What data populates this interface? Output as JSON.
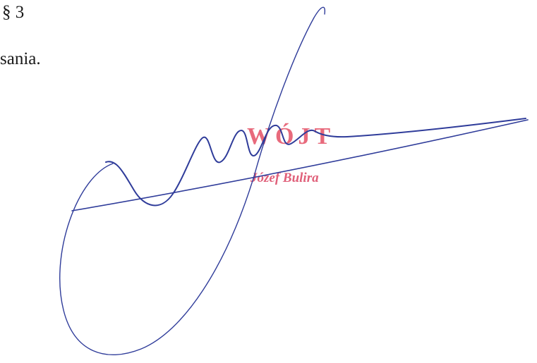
{
  "document": {
    "section_mark": "§ 3",
    "text_fragment": "sania."
  },
  "stamp": {
    "title": "WÓJT",
    "name": "Józef Bulira",
    "color": "#e86a7c"
  },
  "signature": {
    "ink_color": "#2f3c9a"
  }
}
